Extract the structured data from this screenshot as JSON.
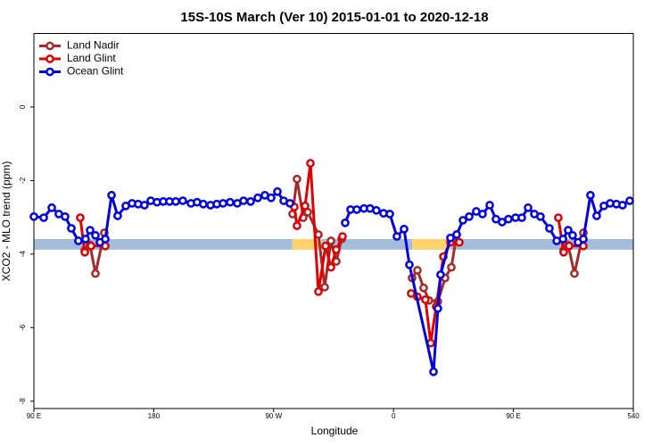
{
  "chart_data": {
    "type": "line",
    "title": "15S-10S March (Ver 10)   2015-01-01 to 2020-12-18",
    "xlabel": "Longitude",
    "ylabel": "XCO2 - MLO trend (ppm)",
    "xlim": [
      90,
      540
    ],
    "ylim": [
      -8.2,
      2
    ],
    "xticks": [
      {
        "value": 90,
        "label": "90 E"
      },
      180,
      {
        "value": 270,
        "label": "90 W"
      },
      {
        "value": 360,
        "label": "0"
      },
      {
        "value": 450,
        "label": "90 E"
      },
      540
    ],
    "yticks": [
      0,
      -2,
      -4,
      -6,
      -8
    ],
    "legend": "top-left",
    "band": {
      "ylim": [
        -3.88,
        -3.59
      ],
      "segments": [
        {
          "x": [
            90,
            284
          ],
          "color": "#a4bddb"
        },
        {
          "x": [
            284,
            306
          ],
          "color": "#fdd26e"
        },
        {
          "x": [
            306,
            374
          ],
          "color": "#a4bddb"
        },
        {
          "x": [
            374,
            403
          ],
          "color": "#fdd26e"
        },
        {
          "x": [
            403,
            540
          ],
          "color": "#a4bddb"
        }
      ]
    },
    "series": [
      {
        "name": "Land Nadir",
        "color": "#a52a2a",
        "x": [
          128.2,
          132.2,
          136.2,
          142.9,
          null,
          284.2,
          287.5,
          292.2,
          295.6,
          303.6,
          308.3,
          313,
          317,
          321,
          null,
          373.9,
          377.9,
          382.6,
          386.6,
          393.3,
          398.7,
          403.4,
          407.4,
          null,
          487.7,
          491.1,
          495.8,
          502.5
        ],
        "values": [
          -3.9,
          -3.76,
          -4.53,
          -3.42,
          null,
          -2.91,
          -1.96,
          -3.01,
          -2.86,
          -3.47,
          -4.9,
          -3.64,
          -4.2,
          -3.59,
          null,
          -4.65,
          -4.44,
          -4.92,
          -5.26,
          -5.29,
          -4.65,
          -4.36,
          -3.47,
          null,
          -3.9,
          -3.76,
          -4.53,
          -3.42
        ]
      },
      {
        "name": "Land Glint",
        "color": "#e00000",
        "x": [
          124.8,
          128.2,
          132.9,
          143.6,
          null,
          285.5,
          287.5,
          293.6,
          297.6,
          303.6,
          309,
          313,
          317,
          321.7,
          null,
          373.2,
          377.9,
          383.9,
          387.9,
          392,
          397.4,
          402.7,
          409.4,
          null,
          483.7,
          487.7,
          491.8,
          502.5
        ],
        "values": [
          -3.01,
          -3.95,
          -3.78,
          -3.78,
          null,
          -2.72,
          -3.23,
          -2.69,
          -1.53,
          -5.02,
          -3.78,
          -4.36,
          -3.88,
          -3.52,
          null,
          -5.07,
          -5.16,
          -5.24,
          -6.42,
          -5.43,
          -4.07,
          -3.68,
          -3.68,
          null,
          -3.01,
          -3.95,
          -3.78,
          -3.78
        ]
      },
      {
        "name": "Ocean Glint",
        "color": "#0000e0",
        "x": [
          90,
          97.4,
          103.4,
          108.7,
          113.4,
          118.1,
          123.4,
          128.8,
          132.2,
          136.2,
          139.6,
          143.6,
          148.3,
          152.9,
          159,
          163.7,
          168.3,
          173,
          177.7,
          182.4,
          187.1,
          191.8,
          196.5,
          201.8,
          207.9,
          212.5,
          217.2,
          222.6,
          227.3,
          232,
          237.3,
          242.7,
          247.4,
          252.7,
          258.1,
          263.4,
          268.1,
          272.8,
          277.5,
          282.2,
          null,
          323.7,
          327.7,
          332.4,
          337.8,
          342.4,
          347.1,
          352.5,
          357.2,
          362.5,
          367.9,
          371.9,
          390,
          393.3,
          395.3,
          402.7,
          407.4,
          412.1,
          416.8,
          422.1,
          426.8,
          432.2,
          436.9,
          441.5,
          446.2,
          451.6,
          456.3,
          461,
          465.7,
          470.3,
          477,
          482.5,
          487.2,
          491.1,
          494.4,
          498.5,
          502.5,
          507.8,
          512.5,
          517.9,
          522.6,
          527.3,
          531.9,
          537.3
        ],
        "values": [
          -2.98,
          -3.01,
          -2.74,
          -2.91,
          -2.98,
          -3.3,
          -3.64,
          -3.59,
          -3.35,
          -3.49,
          -3.68,
          -3.59,
          -2.4,
          -2.96,
          -2.69,
          -2.62,
          -2.64,
          -2.67,
          -2.55,
          -2.59,
          -2.57,
          -2.57,
          -2.57,
          -2.55,
          -2.62,
          -2.59,
          -2.64,
          -2.67,
          -2.64,
          -2.62,
          -2.59,
          -2.62,
          -2.55,
          -2.57,
          -2.47,
          -2.4,
          -2.47,
          -2.3,
          -2.55,
          -2.62,
          null,
          -3.15,
          -2.79,
          -2.79,
          -2.76,
          -2.76,
          -2.81,
          -2.89,
          -2.91,
          -3.52,
          -3.32,
          -4.29,
          -7.2,
          -5.48,
          -4.56,
          -3.56,
          -3.47,
          -3.08,
          -2.98,
          -2.84,
          -2.91,
          -2.67,
          -3.05,
          -3.13,
          -3.05,
          -3.01,
          -3.01,
          -2.74,
          -2.91,
          -2.98,
          -3.3,
          -3.64,
          -3.59,
          -3.35,
          -3.49,
          -3.68,
          -3.59,
          -2.4,
          -2.96,
          -2.69,
          -2.62,
          -2.64,
          -2.67,
          -2.55
        ]
      }
    ]
  }
}
